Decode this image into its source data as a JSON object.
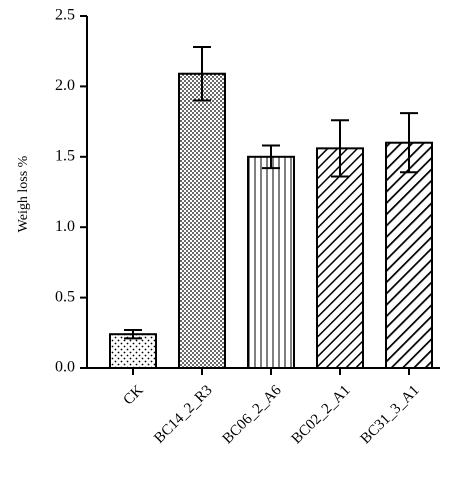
{
  "chart_data": {
    "type": "bar",
    "ylabel": "Weigh loss %",
    "xlabel": "",
    "ylim": [
      0,
      2.5
    ],
    "yticks": [
      "0.0",
      "0.5",
      "1.0",
      "1.5",
      "2.0",
      "2.5"
    ],
    "grid": false,
    "categories": [
      "CK",
      "BC14_2_R3",
      "BC06_2_A6",
      "BC02_2_A1",
      "BC31_3_A1"
    ],
    "values": [
      0.24,
      2.09,
      1.5,
      1.56,
      1.6
    ],
    "errors": [
      0.03,
      0.19,
      0.08,
      0.2,
      0.21
    ],
    "patterns": [
      "sparse-dots",
      "dense-dots",
      "vertical-lines",
      "diagonal-fine",
      "diagonal-wide"
    ],
    "colors": {
      "bar_fill": "#ffffff",
      "ink": "#000000"
    }
  }
}
